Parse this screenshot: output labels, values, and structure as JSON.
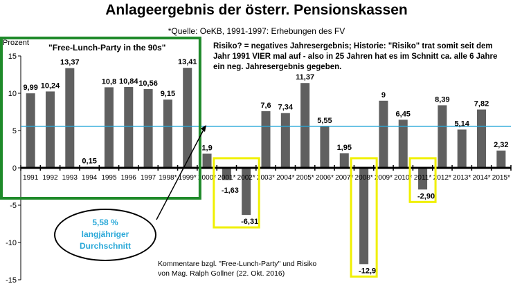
{
  "chart_data": {
    "type": "bar",
    "title": "Anlageergebnis der österr. Pensionskassen",
    "subtitle": "*Quelle: OeKB, 1991-1997: Erhebungen des FV",
    "ylabel": "Prozent",
    "ylim": [
      -15,
      15
    ],
    "yticks": [
      15,
      10,
      5,
      0,
      -5,
      -10,
      -15
    ],
    "categories": [
      "1991",
      "1992",
      "1993",
      "1994",
      "1995",
      "1996",
      "1997",
      "1998",
      "1999",
      "2000",
      "2001",
      "2002",
      "2003",
      "2004",
      "2005",
      "2006",
      "2007",
      "2008",
      "2009",
      "2010",
      "2011",
      "2012",
      "2013",
      "2014",
      "2015"
    ],
    "category_labels": [
      "1991",
      "1992",
      "1993",
      "1994",
      "1995",
      "1996",
      "1997",
      "1998*",
      "1999*",
      "2000*",
      "2001*",
      "2002*",
      "2003*",
      "2004*",
      "2005*",
      "2006*",
      "2007*",
      "2008*",
      "2009*",
      "2010*",
      "2011*",
      "2012*",
      "2013*",
      "2014*",
      "2015*"
    ],
    "values": [
      9.99,
      10.24,
      13.37,
      0.15,
      10.8,
      10.84,
      10.56,
      9.15,
      13.41,
      1.9,
      -1.63,
      -6.31,
      7.6,
      7.34,
      11.37,
      5.55,
      1.95,
      -12.9,
      9,
      6.45,
      -2.9,
      8.39,
      5.14,
      7.82,
      2.32
    ],
    "value_labels": [
      "9,99",
      "10,24",
      "13,37",
      "0,15",
      "10,8",
      "10,84",
      "10,56",
      "9,15",
      "13,41",
      "1,9",
      "-1,63",
      "-6,31",
      "7,6",
      "7,34",
      "11,37",
      "5,55",
      "1,95",
      "-12,9",
      "9",
      "6,45",
      "-2,90",
      "8,39",
      "5,14",
      "7,82",
      "2,32"
    ],
    "average_line": 5.58,
    "highlight_negative_years": [
      "2001",
      "2002",
      "2008",
      "2011"
    ],
    "highlight_period": [
      "1991",
      "1999"
    ],
    "grid": false,
    "colors": {
      "bar": "#606060",
      "average": "#29a8d8",
      "negative_box": "#f0f000",
      "period_box": "#1f8a2a"
    }
  },
  "labels": {
    "period": "\"Free-Lunch-Party in the 90s\"",
    "risk_note": "Risiko? = negatives Jahresergebnis; Historie: \"Risiko\" trat somit seit dem Jahr 1991 VIER mal auf - also in 25 Jahren hat es im Schnitt ca. alle 6 Jahre ein neg. Jahresergebnis gegeben.",
    "avg_value": "5,58 %",
    "avg_line1": "langjähriger",
    "avg_line2": "Durchschnitt",
    "credit_line1": "Kommentare bzgl. \"Free-Lunch-Party\" und Risiko",
    "credit_line2": "von Mag. Ralph Gollner (22. Okt. 2016)"
  }
}
